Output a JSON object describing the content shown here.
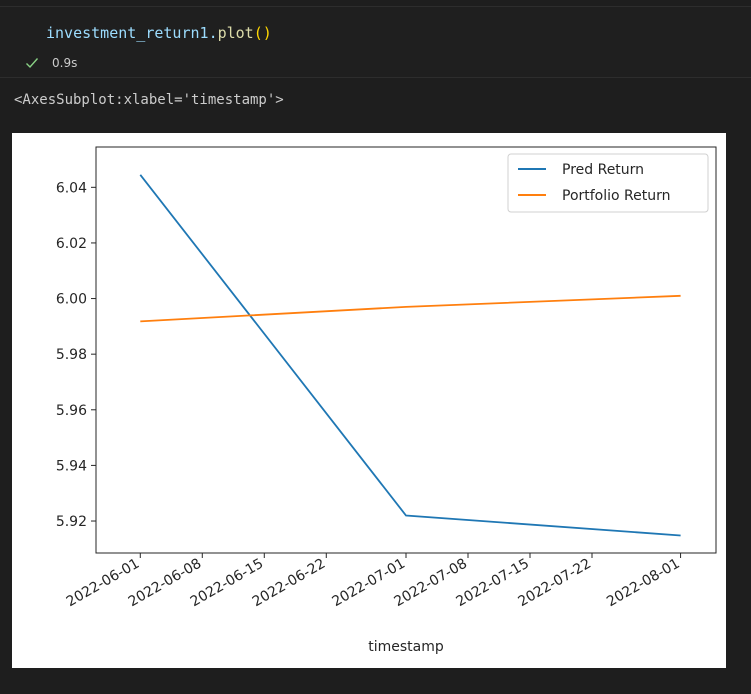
{
  "cell": {
    "code_object": "investment_return1",
    "code_dot": ".",
    "code_method": "plot",
    "code_open": "(",
    "code_close": ")",
    "exec_time": "0.9s"
  },
  "output": {
    "repr": "<AxesSubplot:xlabel='timestamp'>"
  },
  "colors": {
    "pred_line": "#1f77b4",
    "portfolio_line": "#ff7f0e",
    "background": "#1e1e1e"
  },
  "chart_data": {
    "type": "line",
    "xlabel": "timestamp",
    "ylabel": "",
    "x": [
      "2022-06-01",
      "2022-07-01",
      "2022-08-01"
    ],
    "x_ticks": [
      "2022-06-01",
      "2022-06-08",
      "2022-06-15",
      "2022-06-22",
      "2022-07-01",
      "2022-07-08",
      "2022-07-15",
      "2022-07-22",
      "2022-08-01"
    ],
    "y_ticks": [
      "6.04",
      "6.02",
      "6.00",
      "5.98",
      "5.96",
      "5.94",
      "5.92"
    ],
    "ylim": [
      5.9085,
      6.0545
    ],
    "xlim": [
      "2022-05-27",
      "2022-08-05"
    ],
    "legend": "top-right",
    "grid": false,
    "series": [
      {
        "name": "Pred Return",
        "color": "#1f77b4",
        "values": [
          6.0445,
          5.922,
          5.9148
        ]
      },
      {
        "name": "Portfolio Return",
        "color": "#ff7f0e",
        "values": [
          5.9918,
          5.997,
          6.001
        ]
      }
    ]
  }
}
